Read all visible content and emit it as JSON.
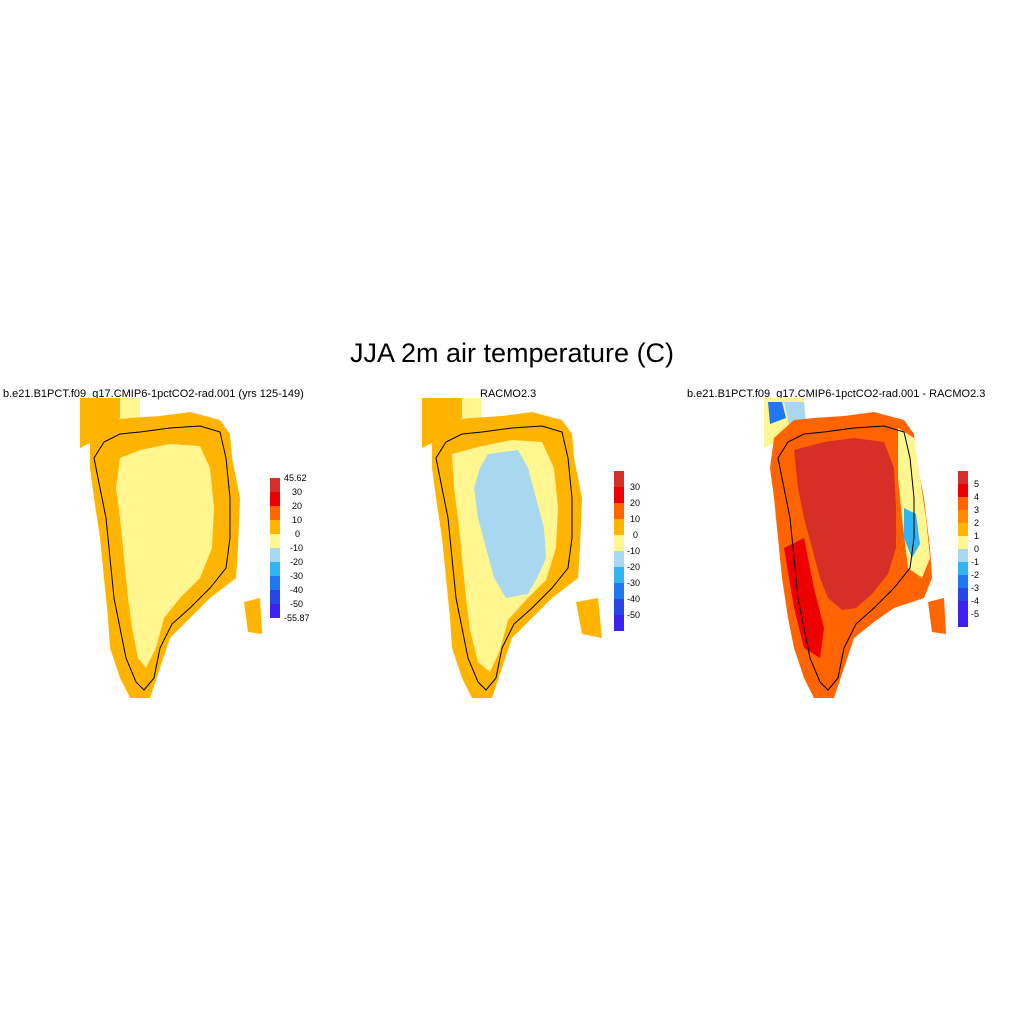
{
  "title": "JJA 2m air temperature (C)",
  "panels": [
    {
      "title": "b.e21.B1PCT.f09_g17.CMIP6-1pctCO2-rad.001 (yrs 125-149)",
      "colorbar": {
        "colors": [
          "#d62f27",
          "#ee0000",
          "#ff6400",
          "#ffb400",
          "#fff68f",
          "#a8d8f0",
          "#32b4f0",
          "#1e78f0",
          "#2845e8",
          "#3d20f2"
        ],
        "labels": [
          "45.62",
          "30",
          "20",
          "10",
          "0",
          "-10",
          "-20",
          "-30",
          "-40",
          "-50",
          "-55.87"
        ]
      }
    },
    {
      "title": "RACMO2.3",
      "colorbar": {
        "colors": [
          "#d62f27",
          "#ee0000",
          "#ff6400",
          "#ffb400",
          "#fff68f",
          "#a8d8f0",
          "#32b4f0",
          "#1e78f0",
          "#2845e8",
          "#3d20f2"
        ],
        "labels": [
          "30",
          "20",
          "10",
          "0",
          "-10",
          "-20",
          "-30",
          "-40",
          "-50"
        ]
      }
    },
    {
      "title": "b.e21.B1PCT.f09_g17.CMIP6-1pctCO2-rad.001 - RACMO2.3",
      "colorbar": {
        "colors": [
          "#d62f27",
          "#ee0000",
          "#ff6400",
          "#ff8c00",
          "#ffb400",
          "#fff68f",
          "#a8d8f0",
          "#32b4f0",
          "#1e78f0",
          "#2845e8",
          "#3d20f2",
          "#3d20f2"
        ],
        "labels": [
          "5",
          "4",
          "3",
          "2",
          "1",
          "0",
          "-1",
          "-2",
          "-3",
          "-4",
          "-5"
        ]
      }
    }
  ]
}
